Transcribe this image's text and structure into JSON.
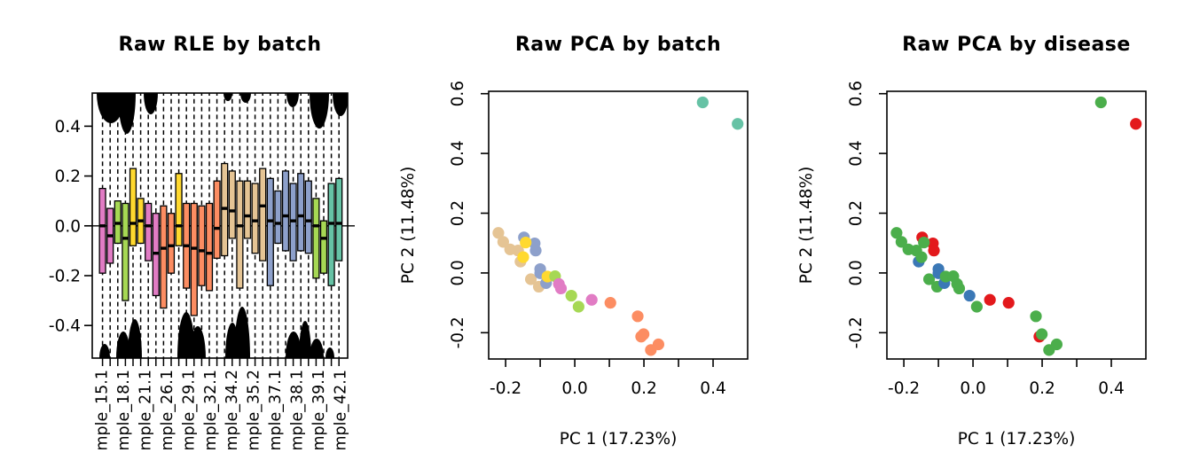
{
  "page": {
    "background": "#FFFFFF",
    "text_color": "#000000"
  },
  "palette": {
    "batch": {
      "pink": "#E17CC4",
      "green": "#A6D854",
      "yellow": "#FFD92F",
      "orange": "#FC8D62",
      "tan": "#E5C494",
      "blue": "#8DA0CB",
      "teal": "#66C2A5"
    },
    "disease": {
      "red": "#E3191C",
      "blue": "#3B78B6",
      "green": "#4BAE4B"
    }
  },
  "chart_data": [
    {
      "type": "boxplot",
      "title": "Raw RLE by batch",
      "ylim": [
        -0.531,
        0.533
      ],
      "ytick_values": [
        -0.4,
        -0.2,
        0,
        0.2,
        0.4
      ],
      "ytick_labels": [
        "-0.4",
        "-0.2",
        "0.0",
        "0.2",
        "0.4"
      ],
      "zero_line": 0,
      "grid": false,
      "x_tick_labels": [
        "mple_15.1",
        "mple_18.1",
        "mple_21.1",
        "mple_26.1",
        "mple_29.1",
        "mple_32.1",
        "mple_34.2",
        "mple_35.2",
        "mple_37.1",
        "mple_38.1",
        "mple_39.1",
        "mple_42.1"
      ],
      "boxes": [
        {
          "color": "pink",
          "q1": -0.19,
          "median": 0.0,
          "q3": 0.15
        },
        {
          "color": "pink",
          "q1": -0.15,
          "median": -0.04,
          "q3": 0.07
        },
        {
          "color": "green",
          "q1": -0.07,
          "median": 0.01,
          "q3": 0.1
        },
        {
          "color": "green",
          "q1": -0.3,
          "median": -0.05,
          "q3": 0.09
        },
        {
          "color": "yellow",
          "q1": -0.08,
          "median": 0.01,
          "q3": 0.23
        },
        {
          "color": "yellow",
          "q1": -0.07,
          "median": 0.02,
          "q3": 0.11
        },
        {
          "color": "pink",
          "q1": -0.14,
          "median": 0.0,
          "q3": 0.09
        },
        {
          "color": "pink",
          "q1": -0.28,
          "median": -0.11,
          "q3": 0.05
        },
        {
          "color": "orange",
          "q1": -0.33,
          "median": -0.09,
          "q3": 0.08
        },
        {
          "color": "orange",
          "q1": -0.19,
          "median": -0.08,
          "q3": 0.05
        },
        {
          "color": "yellow",
          "q1": -0.08,
          "median": 0.0,
          "q3": 0.21
        },
        {
          "color": "orange",
          "q1": -0.25,
          "median": -0.08,
          "q3": 0.09
        },
        {
          "color": "orange",
          "q1": -0.36,
          "median": -0.09,
          "q3": 0.09
        },
        {
          "color": "orange",
          "q1": -0.24,
          "median": -0.1,
          "q3": 0.08
        },
        {
          "color": "orange",
          "q1": -0.26,
          "median": -0.11,
          "q3": 0.09
        },
        {
          "color": "orange",
          "q1": -0.13,
          "median": -0.01,
          "q3": 0.18
        },
        {
          "color": "tan",
          "q1": -0.12,
          "median": 0.07,
          "q3": 0.25
        },
        {
          "color": "tan",
          "q1": -0.05,
          "median": 0.06,
          "q3": 0.22
        },
        {
          "color": "tan",
          "q1": -0.25,
          "median": 0.0,
          "q3": 0.18
        },
        {
          "color": "tan",
          "q1": -0.05,
          "median": 0.04,
          "q3": 0.18
        },
        {
          "color": "tan",
          "q1": -0.11,
          "median": 0.02,
          "q3": 0.17
        },
        {
          "color": "tan",
          "q1": -0.14,
          "median": 0.08,
          "q3": 0.23
        },
        {
          "color": "blue",
          "q1": -0.24,
          "median": 0.02,
          "q3": 0.19
        },
        {
          "color": "blue",
          "q1": -0.07,
          "median": 0.01,
          "q3": 0.14
        },
        {
          "color": "blue",
          "q1": -0.1,
          "median": 0.04,
          "q3": 0.22
        },
        {
          "color": "blue",
          "q1": -0.14,
          "median": 0.02,
          "q3": 0.17
        },
        {
          "color": "blue",
          "q1": -0.1,
          "median": 0.04,
          "q3": 0.21
        },
        {
          "color": "blue",
          "q1": -0.11,
          "median": 0.02,
          "q3": 0.18
        },
        {
          "color": "green",
          "q1": -0.21,
          "median": 0.0,
          "q3": 0.11
        },
        {
          "color": "green",
          "q1": -0.19,
          "median": -0.05,
          "q3": 0.02
        },
        {
          "color": "teal",
          "q1": -0.24,
          "median": 0.01,
          "q3": 0.17
        },
        {
          "color": "teal",
          "q1": -0.14,
          "median": 0.01,
          "q3": 0.19
        }
      ],
      "outlier_clusters": {
        "top": [
          {
            "x": 125,
            "rx": 16,
            "ry": 34
          },
          {
            "x": 143,
            "rx": 10,
            "ry": 46
          },
          {
            "x": 170,
            "rx": 8,
            "ry": 24
          },
          {
            "x": 257,
            "rx": 5,
            "ry": 9
          },
          {
            "x": 277,
            "rx": 6,
            "ry": 11
          },
          {
            "x": 330,
            "rx": 7,
            "ry": 16
          },
          {
            "x": 360,
            "rx": 11,
            "ry": 40
          },
          {
            "x": 384,
            "rx": 9,
            "ry": 26
          }
        ],
        "bottom": [
          {
            "x": 118,
            "rx": 6,
            "ry": 16
          },
          {
            "x": 139,
            "rx": 8,
            "ry": 30
          },
          {
            "x": 152,
            "rx": 8,
            "ry": 44
          },
          {
            "x": 210,
            "rx": 10,
            "ry": 52
          },
          {
            "x": 223,
            "rx": 9,
            "ry": 36
          },
          {
            "x": 262,
            "rx": 8,
            "ry": 40
          },
          {
            "x": 273,
            "rx": 9,
            "ry": 58
          },
          {
            "x": 331,
            "rx": 9,
            "ry": 30
          },
          {
            "x": 344,
            "rx": 7,
            "ry": 42
          },
          {
            "x": 357,
            "rx": 8,
            "ry": 22
          },
          {
            "x": 372,
            "rx": 5,
            "ry": 12
          }
        ]
      }
    },
    {
      "type": "scatter",
      "title": "Raw PCA by batch",
      "xlabel": "PC 1 (17.23%)",
      "ylabel": "PC 2 (11.48%)",
      "color_by": "batch",
      "xlim": [
        -0.249,
        0.5
      ],
      "ylim": [
        -0.288,
        0.608
      ],
      "xtick_values": [
        -0.2,
        -0.1,
        0,
        0.1,
        0.2,
        0.3,
        0.4
      ],
      "xtick_labels": [
        "-0.2",
        "",
        "0.0",
        "",
        "0.2",
        "",
        "0.4"
      ],
      "ytick_values": [
        -0.2,
        0,
        0.2,
        0.4,
        0.6
      ],
      "ytick_labels": [
        "-0.2",
        "0.0",
        "0.2",
        "0.4",
        "0.6"
      ],
      "points": [
        {
          "x": -0.221,
          "y": 0.134,
          "batch": "tan",
          "disease": "green"
        },
        {
          "x": -0.207,
          "y": 0.104,
          "batch": "tan",
          "disease": "green"
        },
        {
          "x": -0.187,
          "y": 0.079,
          "batch": "tan",
          "disease": "green"
        },
        {
          "x": -0.164,
          "y": 0.075,
          "batch": "tan",
          "disease": "green"
        },
        {
          "x": -0.157,
          "y": 0.038,
          "batch": "tan",
          "disease": "blue"
        },
        {
          "x": -0.127,
          "y": -0.021,
          "batch": "tan",
          "disease": "green"
        },
        {
          "x": -0.104,
          "y": -0.046,
          "batch": "tan",
          "disease": "green"
        },
        {
          "x": -0.147,
          "y": 0.119,
          "batch": "blue",
          "disease": "red"
        },
        {
          "x": -0.116,
          "y": 0.099,
          "batch": "blue",
          "disease": "red"
        },
        {
          "x": -0.113,
          "y": 0.075,
          "batch": "blue",
          "disease": "red"
        },
        {
          "x": -0.1,
          "y": 0.013,
          "batch": "blue",
          "disease": "blue"
        },
        {
          "x": -0.1,
          "y": -0.001,
          "batch": "blue",
          "disease": "blue"
        },
        {
          "x": -0.083,
          "y": -0.034,
          "batch": "blue",
          "disease": "blue"
        },
        {
          "x": -0.142,
          "y": 0.102,
          "batch": "yellow",
          "disease": "green"
        },
        {
          "x": -0.149,
          "y": 0.053,
          "batch": "yellow",
          "disease": "green"
        },
        {
          "x": -0.079,
          "y": -0.012,
          "batch": "yellow",
          "disease": "green"
        },
        {
          "x": -0.057,
          "y": -0.011,
          "batch": "green",
          "disease": "green"
        },
        {
          "x": -0.01,
          "y": -0.076,
          "batch": "green",
          "disease": "blue"
        },
        {
          "x": 0.011,
          "y": -0.113,
          "batch": "green",
          "disease": "green"
        },
        {
          "x": -0.046,
          "y": -0.037,
          "batch": "pink",
          "disease": "green"
        },
        {
          "x": -0.04,
          "y": -0.052,
          "batch": "pink",
          "disease": "green"
        },
        {
          "x": 0.049,
          "y": -0.09,
          "batch": "pink",
          "disease": "red"
        },
        {
          "x": 0.103,
          "y": -0.1,
          "batch": "orange",
          "disease": "red"
        },
        {
          "x": 0.182,
          "y": -0.145,
          "batch": "orange",
          "disease": "green"
        },
        {
          "x": 0.192,
          "y": -0.213,
          "batch": "orange",
          "disease": "red"
        },
        {
          "x": 0.199,
          "y": -0.205,
          "batch": "orange",
          "disease": "green"
        },
        {
          "x": 0.242,
          "y": -0.239,
          "batch": "orange",
          "disease": "green"
        },
        {
          "x": 0.22,
          "y": -0.258,
          "batch": "orange",
          "disease": "green"
        },
        {
          "x": 0.37,
          "y": 0.571,
          "batch": "teal",
          "disease": "green"
        },
        {
          "x": 0.471,
          "y": 0.499,
          "batch": "teal",
          "disease": "red"
        }
      ]
    },
    {
      "type": "scatter",
      "title": "Raw PCA by disease",
      "xlabel": "PC 1 (17.23%)",
      "ylabel": "PC 2 (11.48%)",
      "color_by": "disease",
      "points_same_as": 1,
      "xlim": [
        -0.249,
        0.5
      ],
      "ylim": [
        -0.288,
        0.608
      ],
      "xtick_values": [
        -0.2,
        -0.1,
        0,
        0.1,
        0.2,
        0.3,
        0.4
      ],
      "xtick_labels": [
        "-0.2",
        "",
        "0.0",
        "",
        "0.2",
        "",
        "0.4"
      ],
      "ytick_values": [
        -0.2,
        0,
        0.2,
        0.4,
        0.6
      ],
      "ytick_labels": [
        "-0.2",
        "0.0",
        "0.2",
        "0.4",
        "0.6"
      ]
    }
  ]
}
